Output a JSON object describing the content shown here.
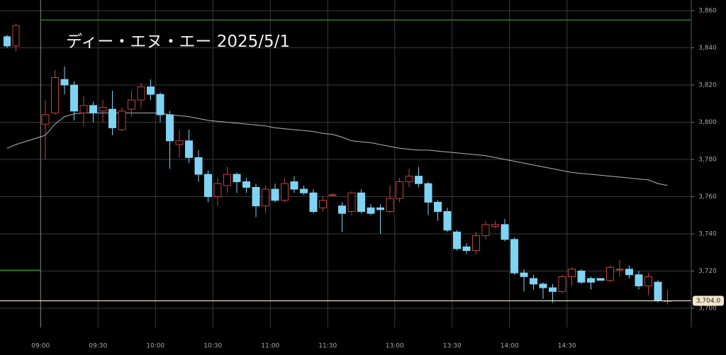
{
  "chart_data": {
    "type": "candlestick",
    "title": "ディー・エヌ・エー 2025/5/1",
    "categories": [
      null,
      null,
      "09:00",
      null,
      null,
      null,
      null,
      null,
      "09:30",
      null,
      null,
      null,
      null,
      null,
      "10:00",
      null,
      null,
      null,
      null,
      null,
      "10:30",
      null,
      null,
      null,
      null,
      null,
      "11:00",
      null,
      null,
      null,
      null,
      null,
      "11:30",
      null,
      null,
      null,
      null,
      null,
      null,
      "13:00",
      null,
      null,
      null,
      null,
      null,
      "13:30",
      null,
      null,
      null,
      null,
      null,
      "14:00",
      null,
      null,
      null,
      null,
      null,
      "14:30",
      null,
      null,
      null,
      null,
      null,
      null,
      null,
      null,
      null,
      null
    ],
    "open": [
      3846,
      3841,
      3799,
      3805,
      3823,
      3820,
      3805,
      3809,
      3806,
      3807,
      3796,
      3807,
      3812,
      3819,
      3815,
      3804,
      3788,
      3790,
      3781,
      3772,
      3760,
      3766,
      3772,
      3768,
      3765,
      3755,
      3764,
      3758,
      3768,
      3764,
      3762,
      3754,
      3761,
      3755,
      3752,
      3762,
      3754,
      3754,
      3752,
      3759,
      3768,
      3771,
      3767,
      3757,
      3752,
      3741,
      3733,
      3731,
      3739,
      3744,
      3745,
      3737,
      3719,
      3716,
      3713,
      3711,
      3709,
      3717,
      3720,
      3716,
      3716,
      3715,
      3721,
      3721,
      3718,
      3712,
      3714,
      3704
    ],
    "high": [
      3847,
      3853,
      3812,
      3828,
      3830,
      3822,
      3814,
      3811,
      3812,
      3817,
      3808,
      3817,
      3821,
      3823,
      3816,
      3806,
      3796,
      3796,
      3785,
      3774,
      3770,
      3776,
      3773,
      3770,
      3767,
      3766,
      3767,
      3770,
      3771,
      3766,
      3764,
      3760,
      3762,
      3757,
      3763,
      3764,
      3756,
      3756,
      3766,
      3770,
      3775,
      3776,
      3768,
      3758,
      3754,
      3742,
      3735,
      3741,
      3747,
      3747,
      3748,
      3738,
      3721,
      3718,
      3714,
      3713,
      3718,
      3722,
      3721,
      3717,
      3716,
      3723,
      3726,
      3723,
      3720,
      3719,
      3715,
      3710
    ],
    "low": [
      3840,
      3838,
      3780,
      3804,
      3815,
      3801,
      3798,
      3800,
      3800,
      3793,
      3795,
      3803,
      3808,
      3812,
      3800,
      3775,
      3781,
      3778,
      3768,
      3757,
      3755,
      3762,
      3762,
      3762,
      3749,
      3751,
      3757,
      3757,
      3762,
      3761,
      3751,
      3752,
      3761,
      3741,
      3750,
      3751,
      3750,
      3740,
      3751,
      3757,
      3765,
      3765,
      3750,
      3747,
      3741,
      3731,
      3729,
      3729,
      3737,
      3743,
      3736,
      3718,
      3709,
      3710,
      3705,
      3703,
      3708,
      3712,
      3713,
      3710,
      3715,
      3714,
      3717,
      3716,
      3710,
      3707,
      3703,
      3702
    ],
    "close": [
      3841,
      3852,
      3804,
      3824,
      3820,
      3806,
      3809,
      3805,
      3808,
      3797,
      3806,
      3812,
      3819,
      3815,
      3804,
      3790,
      3790,
      3781,
      3772,
      3760,
      3767,
      3772,
      3768,
      3765,
      3755,
      3764,
      3758,
      3767,
      3764,
      3762,
      3752,
      3758,
      3761,
      3751,
      3762,
      3752,
      3751,
      3753,
      3759,
      3768,
      3771,
      3767,
      3757,
      3752,
      3742,
      3732,
      3731,
      3739,
      3745,
      3745,
      3737,
      3719,
      3717,
      3713,
      3711,
      3709,
      3717,
      3721,
      3714,
      3714,
      3715,
      3722,
      3721,
      3718,
      3712,
      3717,
      3704,
      3704
    ],
    "up_color": "#c0443c",
    "down_color": "#7fd3f3",
    "ma": {
      "color": "#b4b4b4",
      "values": [
        3786,
        3788,
        3793,
        3799,
        3803,
        3804.5,
        3805,
        3805,
        3805,
        3805,
        3805,
        3805,
        3805,
        3805,
        3805,
        3804,
        3803.5,
        3803,
        3802,
        3801,
        3800.5,
        3800,
        3799.5,
        3799,
        3798.5,
        3798,
        3797,
        3796.5,
        3796,
        3795.5,
        3795,
        3794,
        3793.5,
        3792,
        3790,
        3789.5,
        3789,
        3788,
        3787,
        3786,
        3785.5,
        3785,
        3785,
        3784.5,
        3784,
        3783.5,
        3783,
        3782.5,
        3782,
        3781,
        3780,
        3779,
        3778,
        3777,
        3776,
        3775,
        3774,
        3773,
        3772.5,
        3772,
        3771.5,
        3771,
        3770.5,
        3770,
        3769.5,
        3769,
        3767,
        3766
      ]
    },
    "level_lines": [
      {
        "value": 3855,
        "color": "#2f9a2f",
        "session": "current"
      },
      {
        "value": 3720.5,
        "color": "#2f9a2f",
        "session": "previous"
      }
    ],
    "last_price": {
      "value": 3704,
      "label": "3,704.0"
    },
    "ylim": [
      3690,
      3866
    ],
    "yticks": [
      {
        "value": 3700,
        "label": "3,700"
      },
      {
        "value": 3720,
        "label": "3,720"
      },
      {
        "value": 3740,
        "label": "3,740"
      },
      {
        "value": 3760,
        "label": "3,760"
      },
      {
        "value": 3780,
        "label": "3,780"
      },
      {
        "value": 3800,
        "label": "3,800"
      },
      {
        "value": 3820,
        "label": "3,820"
      },
      {
        "value": 3840,
        "label": "3,840"
      },
      {
        "value": 3860,
        "label": "3,860"
      }
    ],
    "grid": true
  }
}
